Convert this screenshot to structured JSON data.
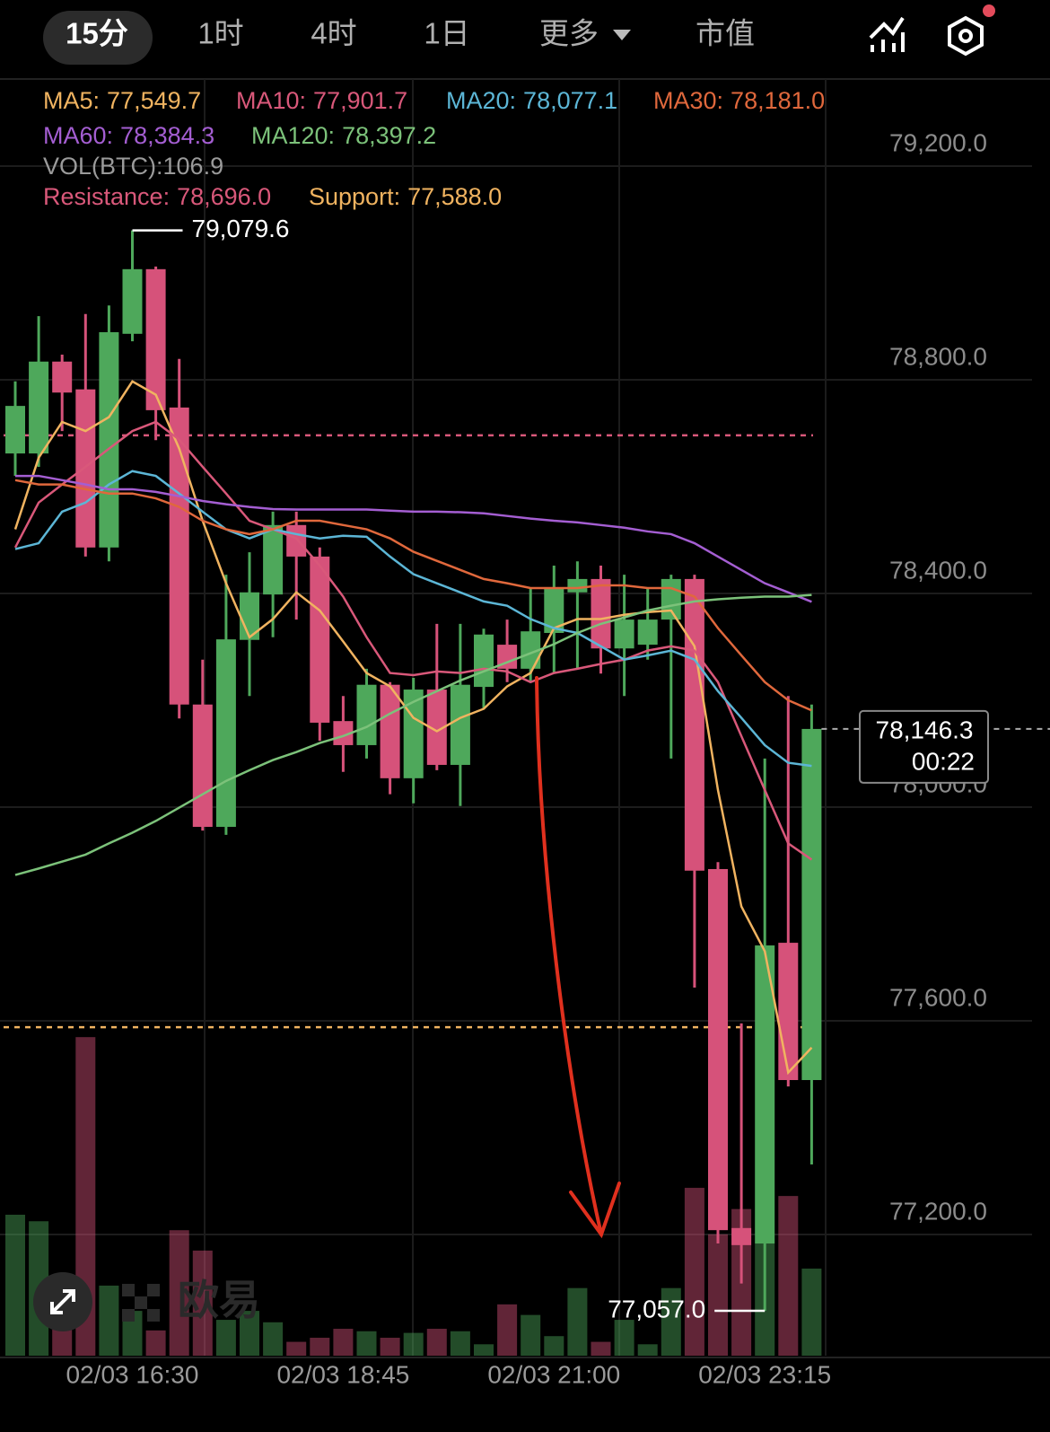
{
  "chart_data": {
    "type": "candlestick",
    "tabs": [
      "15分",
      "1时",
      "4时",
      "1日",
      "更多",
      "市值"
    ],
    "watermark": "欧易",
    "categories": [
      null,
      null,
      null,
      null,
      null,
      "02/03 16:30",
      null,
      null,
      null,
      null,
      null,
      null,
      null,
      null,
      "02/03 18:45",
      null,
      null,
      null,
      null,
      null,
      null,
      null,
      null,
      "02/03 21:00",
      null,
      null,
      null,
      null,
      null,
      null,
      null,
      null,
      "02/03 23:15",
      null,
      null
    ],
    "open": [
      78662,
      78662,
      78834,
      78782,
      78486,
      78886,
      79007,
      78748,
      78192,
      77963,
      78313,
      78398,
      78528,
      78469,
      78161,
      78116,
      78229,
      78054,
      78220,
      78079,
      78225,
      78304,
      78259,
      78326,
      78402,
      78427,
      78297,
      78304,
      78351,
      78427,
      77884,
      77212,
      77183,
      77746,
      77489
    ],
    "high": [
      78797,
      78919,
      78847,
      78923,
      78939,
      79079.6,
      79012,
      78839,
      78276,
      78435,
      78477,
      78553,
      78553,
      78486,
      78208,
      78259,
      78234,
      78242,
      78343,
      78343,
      78334,
      78351,
      78410,
      78452,
      78460,
      78452,
      78435,
      78410,
      78435,
      78435,
      77897,
      77595,
      78091,
      78208,
      78192
    ],
    "low": [
      78620,
      78637,
      78704,
      78469,
      78460,
      78872,
      78687,
      78166,
      77956,
      77948,
      78208,
      78318,
      78351,
      78124,
      78066,
      78091,
      78024,
      78007,
      78069,
      78002,
      78183,
      78234,
      78234,
      78250,
      78259,
      78250,
      78208,
      78276,
      78091,
      77662,
      77183,
      77108,
      77057,
      77477,
      77331
    ],
    "close": [
      78751,
      78834,
      78776,
      78486,
      78889,
      79007,
      78743,
      78192,
      77963,
      78314,
      78402,
      78528,
      78469,
      78158,
      78116,
      78229,
      78054,
      78220,
      78079,
      78229,
      78323,
      78259,
      78329,
      78410,
      78427,
      78297,
      78351,
      78351,
      78427,
      77881,
      77208,
      77180,
      77741,
      77489,
      78146.3
    ],
    "up_color": "#4ea85b",
    "down_color": "#d6527a",
    "volume": {
      "name": "VOL(BTC):",
      "label": "106.9",
      "values": [
        173,
        165,
        39,
        391,
        86,
        55,
        31,
        154,
        129,
        44,
        55,
        41,
        17,
        22,
        33,
        30,
        22,
        28,
        33,
        30,
        14,
        63,
        50,
        24,
        83,
        17,
        44,
        14,
        83,
        206,
        149,
        180,
        138,
        196,
        106.9
      ],
      "lim": [
        0,
        400
      ]
    },
    "series": [
      {
        "name": "MA5:",
        "label": "77,549.7",
        "color": "#f0b360",
        "values": [
          78520,
          78654,
          78721,
          78704,
          78730,
          78797,
          78772,
          78671,
          78536,
          78419,
          78318,
          78352,
          78402,
          78368,
          78310,
          78251,
          78226,
          78167,
          78142,
          78167,
          78184,
          78226,
          78251,
          78335,
          78352,
          78352,
          78360,
          78365,
          78368,
          78301,
          78032,
          77814,
          77730,
          77503,
          77549.7
        ]
      },
      {
        "name": "MA10:",
        "label": "77,901.7",
        "color": "#d9587a",
        "values": [
          78486,
          78570,
          78604,
          78637,
          78671,
          78704,
          78721,
          78688,
          78637,
          78587,
          78536,
          78520,
          78503,
          78452,
          78394,
          78318,
          78251,
          78247,
          78254,
          78251,
          78259,
          78254,
          78234,
          78251,
          78259,
          78268,
          78276,
          78293,
          78301,
          78293,
          78234,
          78133,
          78032,
          77932,
          77901.7
        ]
      },
      {
        "name": "MA20:",
        "label": "78,077.1",
        "color": "#5cb6d6",
        "values": [
          78483,
          78494,
          78553,
          78570,
          78604,
          78629,
          78620,
          78587,
          78553,
          78520,
          78503,
          78520,
          78511,
          78503,
          78508,
          78506,
          78469,
          78436,
          78419,
          78402,
          78385,
          78377,
          78352,
          78335,
          78326,
          78301,
          78276,
          78284,
          78293,
          78276,
          78217,
          78167,
          78116,
          78083,
          78077.1
        ]
      },
      {
        "name": "MA30:",
        "label": "78,181.0",
        "color": "#e0683c",
        "values": [
          78612,
          78604,
          78604,
          78595,
          78587,
          78587,
          78578,
          78562,
          78536,
          78520,
          78511,
          78520,
          78536,
          78536,
          78528,
          78520,
          78503,
          78478,
          78461,
          78444,
          78427,
          78419,
          78410,
          78410,
          78410,
          78415,
          78415,
          78410,
          78410,
          78394,
          78335,
          78284,
          78234,
          78200,
          78181
        ]
      },
      {
        "name": "MA60:",
        "label": "78,384.3",
        "color": "#a45ed2",
        "values": [
          78620,
          78620,
          78612,
          78604,
          78595,
          78595,
          78590,
          78582,
          78573,
          78567,
          78562,
          78558,
          78557,
          78557,
          78557,
          78557,
          78555,
          78553,
          78553,
          78552,
          78550,
          78545,
          78540,
          78536,
          78533,
          78528,
          78523,
          78516,
          78511,
          78494,
          78469,
          78444,
          78419,
          78402,
          78384.3
        ]
      },
      {
        "name": "MA120:",
        "label": "78,397.2",
        "color": "#7cc27a",
        "values": [
          77873,
          77885,
          77898,
          77911,
          77932,
          77952,
          77974,
          77999,
          78024,
          78049,
          78069,
          78088,
          78103,
          78120,
          78133,
          78150,
          78175,
          78197,
          78217,
          78237,
          78254,
          78271,
          78288,
          78305,
          78326,
          78343,
          78355,
          78368,
          78377,
          78385,
          78389,
          78392,
          78394,
          78394,
          78397.2
        ]
      }
    ],
    "levels": [
      {
        "name": "Resistance:",
        "label": "78,696.0",
        "value": 78696,
        "color": "#d9587a"
      },
      {
        "name": "Support:",
        "label": "77,588.0",
        "value": 77588,
        "color": "#f0b360"
      }
    ],
    "high_label": "79,079.6",
    "low_label": "77,057.0",
    "last_label": "78,146.3",
    "countdown": "00:22",
    "ylim": [
      76973,
      79363
    ],
    "yticks": [
      {
        "value": 79200,
        "label": "79,200.0"
      },
      {
        "value": 78800,
        "label": "78,800.0"
      },
      {
        "value": 78400,
        "label": "78,400.0"
      },
      {
        "value": 78000,
        "label": "78,000.0"
      },
      {
        "value": 77600,
        "label": "77,600.0"
      },
      {
        "value": 77200,
        "label": "77,200.0"
      }
    ],
    "grid": true
  }
}
